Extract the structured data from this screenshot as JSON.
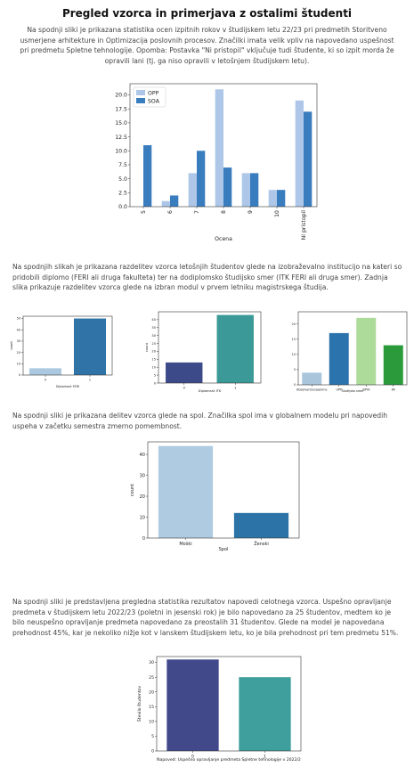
{
  "page": {
    "title": "Pregled vzorca in primerjava z ostalimi študenti",
    "p1": "Na spodnji sliki je prikazana statistika ocen izpitnih rokov v študijskem letu 22/23 pri predmetih Storitveno usmerjene arhitekture in Optimizacija poslovnih procesov. Značilki imata velik vpliv na napovedano uspešnost pri predmetu Spletne tehnologije. Opomba: Postavka \"Ni pristopil\" vključuje tudi študente, ki so izpit morda že opravili lani (tj. ga niso opravili v letošnjem študijskem letu).",
    "p2": "Na spodnjih slikah je prikazana razdelitev vzorca letošnjih študentov glede na izobraževalno institucijo na kateri so pridobili diplomo (FERI ali druga fakulteta) ter na dodiplomsko študijsko smer (ITK FERI ali druga smer). Zadnja slika prikazuje razdelitev vzorca glede na izbran modul v prvem letniku magistrskega študija.",
    "p3": "Na spodnji sliki je prikazana delitev vzorca glede na spol. Značilka spol ima v globalnem modelu pri napovedih uspeha v začetku semestra zmerno pomembnost.",
    "p4": "Na spodnji sliki je predstavljena pregledna statistika rezultatov napovedi celotnega vzorca. Uspešno opravljanje predmeta v študijskem letu 2022/23 (poletni in jesenski rok) je bilo napovedano za 25 študentov, medtem ko je bilo neuspešno opravljanje predmeta napovedano za preostalih 31 študentov. Glede na model je napovedana prehodnost 45%, kar je nekoliko nižje kot v lanskem študijskem letu, ko je bila prehodnost pri tem predmetu 51%."
  },
  "chart_data": [
    {
      "type": "bar",
      "categories": [
        "5",
        "6",
        "7",
        "8",
        "9",
        "10",
        "Ni pristopil"
      ],
      "series": [
        {
          "name": "OPP",
          "values": [
            0,
            1,
            6,
            21,
            6,
            3,
            19
          ],
          "color": "#aec7e8"
        },
        {
          "name": "SOA",
          "values": [
            11,
            2,
            10,
            7,
            6,
            3,
            17
          ],
          "color": "#3a7dbf"
        }
      ],
      "xlabel": "Ocena",
      "ylabel": "",
      "yticks": [
        "0.0",
        "2.5",
        "5.0",
        "7.5",
        "10.0",
        "12.5",
        "15.0",
        "17.5",
        "20.0"
      ],
      "ylim": [
        0,
        22
      ],
      "legend": "top-left"
    },
    {
      "type": "bar",
      "categories": [
        "0",
        "1"
      ],
      "values": [
        6,
        50
      ],
      "colors": [
        "#aac9e0",
        "#2f73a7"
      ],
      "xlabel": "Diplomant FERI",
      "ylabel": "count",
      "yticks": [
        "0",
        "10",
        "20",
        "30",
        "40",
        "50"
      ],
      "ylim": [
        0,
        52
      ]
    },
    {
      "type": "bar",
      "categories": [
        "0",
        "1"
      ],
      "values": [
        13,
        43
      ],
      "colors": [
        "#3d4a8a",
        "#3b9a97"
      ],
      "xlabel": "Diplomant ITK",
      "ylabel": "count",
      "yticks": [
        "0",
        "5",
        "10",
        "15",
        "20",
        "25",
        "30",
        "35",
        "40"
      ],
      "ylim": [
        0,
        45
      ]
    },
    {
      "type": "bar",
      "categories": [
        "Absolvent/vzajemno",
        "UPP",
        "SIPIA",
        "IIR"
      ],
      "values": [
        4,
        17,
        22,
        13
      ],
      "colors": [
        "#a9c5dc",
        "#2b73ad",
        "#addb9a",
        "#2a9a3a"
      ],
      "xlabel": "Študijska smer",
      "ylabel": "",
      "yticks": [
        "0",
        "5",
        "10",
        "15",
        "20"
      ],
      "ylim": [
        0,
        24
      ]
    },
    {
      "type": "bar",
      "categories": [
        "Moški",
        "Ženski"
      ],
      "values": [
        44,
        12
      ],
      "colors": [
        "#aecbe1",
        "#2c74a8"
      ],
      "xlabel": "Spol",
      "ylabel": "count",
      "yticks": [
        "0",
        "10",
        "20",
        "30",
        "40"
      ],
      "ylim": [
        0,
        46
      ]
    },
    {
      "type": "bar",
      "categories": [
        "0",
        "1"
      ],
      "values": [
        31,
        25
      ],
      "colors": [
        "#42498a",
        "#3f9f9c"
      ],
      "xlabel": "Napoved: Uspešno opravljanje predmeta Spletne tehnologije v 2022/2",
      "ylabel": "Število študentov",
      "yticks": [
        "0",
        "5",
        "10",
        "15",
        "20",
        "25",
        "30"
      ],
      "ylim": [
        0,
        32
      ]
    }
  ]
}
